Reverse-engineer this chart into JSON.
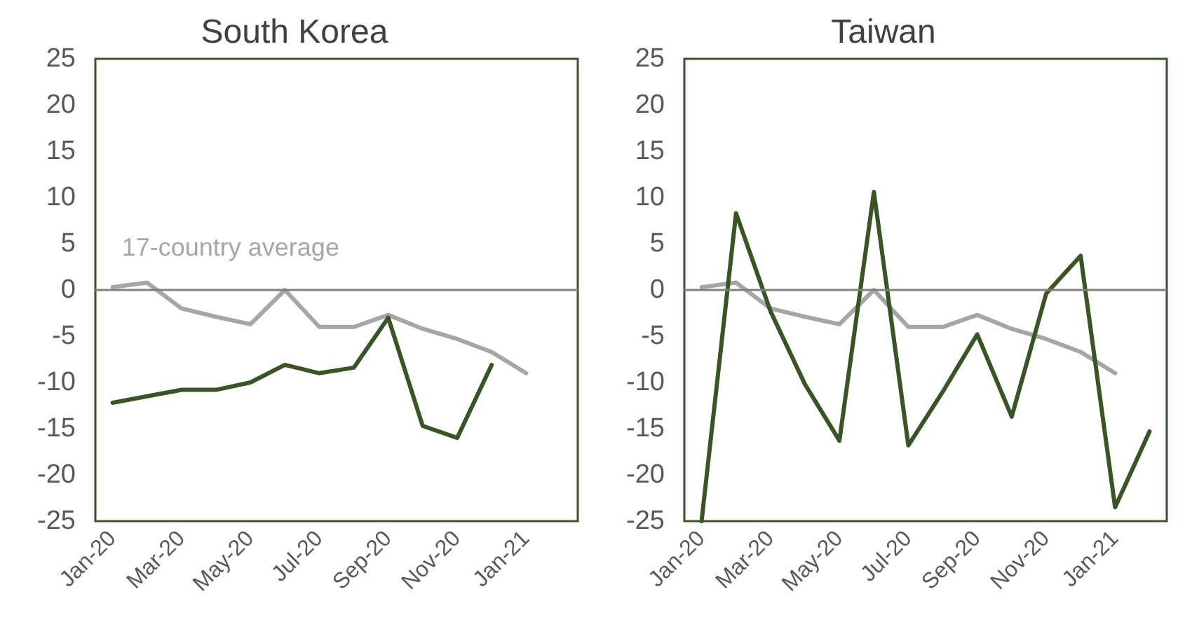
{
  "chart_data": [
    {
      "type": "line",
      "title": "South Korea",
      "categories": [
        "Jan-20",
        null,
        "Mar-20",
        null,
        "May-20",
        null,
        "Jul-20",
        null,
        "Sep-20",
        null,
        "Nov-20",
        null,
        "Jan-21",
        null
      ],
      "series": [
        {
          "name": "17-country average",
          "color": "#a6a6a6",
          "values": [
            0.3,
            0.8,
            -2,
            -2.9,
            -3.7,
            0,
            -4,
            -4,
            -2.7,
            -4.2,
            -5.3,
            -6.7,
            -9,
            null
          ]
        },
        {
          "color": "#375623",
          "values": [
            -12.2,
            -11.5,
            -10.8,
            -10.8,
            -10,
            -8.1,
            -9,
            -8.4,
            -3,
            -14.7,
            -16,
            -8.1,
            null,
            null
          ]
        }
      ],
      "ylim": [
        -25,
        25
      ],
      "yticks": [
        -25,
        -20,
        -15,
        -10,
        -5,
        0,
        5,
        10,
        15,
        20,
        25
      ],
      "grid": false,
      "legend": false,
      "marker": "none",
      "line_style": "solid",
      "ref_lines": [
        {
          "axis": "y",
          "value": 0,
          "color": "#808080"
        }
      ]
    },
    {
      "type": "line",
      "title": "Taiwan",
      "categories": [
        "Jan-20",
        null,
        "Mar-20",
        null,
        "May-20",
        null,
        "Jul-20",
        null,
        "Sep-20",
        null,
        "Nov-20",
        null,
        "Jan-21",
        null
      ],
      "series": [
        {
          "color": "#a6a6a6",
          "values": [
            0.3,
            0.8,
            -2,
            -2.9,
            -3.7,
            0,
            -4,
            -4,
            -2.7,
            -4.2,
            -5.3,
            -6.7,
            -9,
            null
          ]
        },
        {
          "color": "#375623",
          "values": [
            -25,
            8.3,
            -2.3,
            -10.2,
            -16.3,
            10.6,
            -16.8,
            -11,
            -4.8,
            -13.7,
            -0.4,
            3.7,
            -23.5,
            -15.3
          ]
        }
      ],
      "ylim": [
        -25,
        25
      ],
      "yticks": [
        -25,
        -20,
        -15,
        -10,
        -5,
        0,
        5,
        10,
        15,
        20,
        25
      ],
      "grid": false,
      "legend": false,
      "marker": "none",
      "line_style": "solid",
      "ref_lines": [
        {
          "axis": "y",
          "value": 0,
          "color": "#808080"
        }
      ]
    }
  ]
}
